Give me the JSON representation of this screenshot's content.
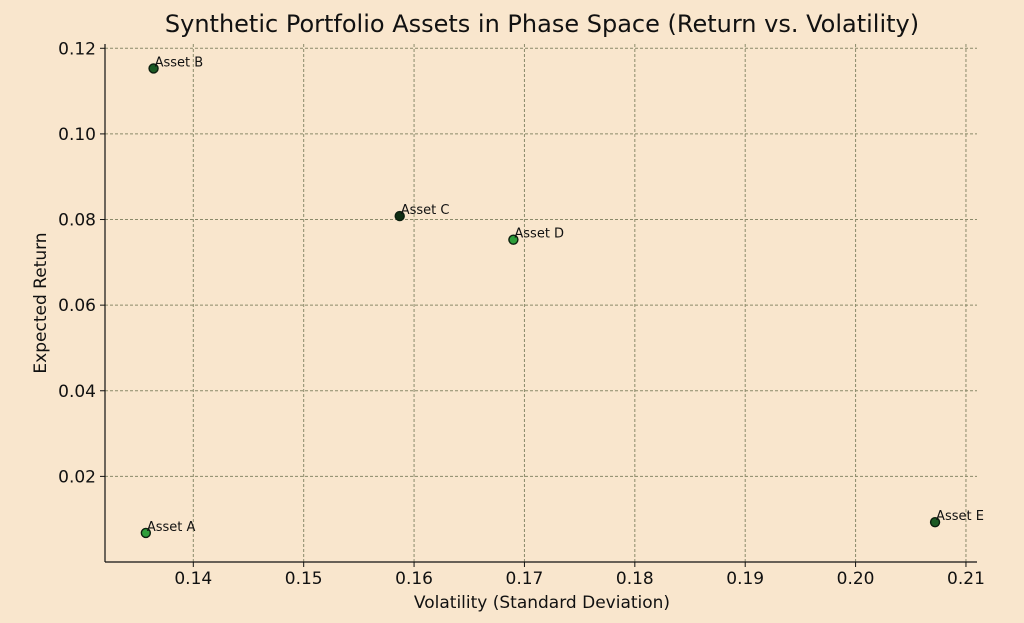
{
  "chart_data": {
    "type": "scatter",
    "title": "Synthetic Portfolio Assets in Phase Space (Return vs. Volatility)",
    "xlabel": "Volatility (Standard Deviation)",
    "ylabel": "Expected Return",
    "xlim": [
      0.132,
      0.211
    ],
    "ylim": [
      0.0,
      0.121
    ],
    "x_ticks": [
      0.14,
      0.15,
      0.16,
      0.17,
      0.18,
      0.19,
      0.2,
      0.21
    ],
    "x_tick_labels": [
      "0.14",
      "0.15",
      "0.16",
      "0.17",
      "0.18",
      "0.19",
      "0.20",
      "0.21"
    ],
    "y_ticks": [
      0.02,
      0.04,
      0.06,
      0.08,
      0.1,
      0.12
    ],
    "y_tick_labels": [
      "0.02",
      "0.04",
      "0.06",
      "0.08",
      "0.10",
      "0.12"
    ],
    "grid": true,
    "points": [
      {
        "label": "Asset A",
        "x": 0.1357,
        "y": 0.0068,
        "color": "#2e9e3a"
      },
      {
        "label": "Asset B",
        "x": 0.1364,
        "y": 0.1153,
        "color": "#1c5a24"
      },
      {
        "label": "Asset C",
        "x": 0.1587,
        "y": 0.0808,
        "color": "#0f2e14"
      },
      {
        "label": "Asset D",
        "x": 0.169,
        "y": 0.0753,
        "color": "#2e9e3a"
      },
      {
        "label": "Asset E",
        "x": 0.2072,
        "y": 0.0093,
        "color": "#1c5a24"
      }
    ]
  }
}
